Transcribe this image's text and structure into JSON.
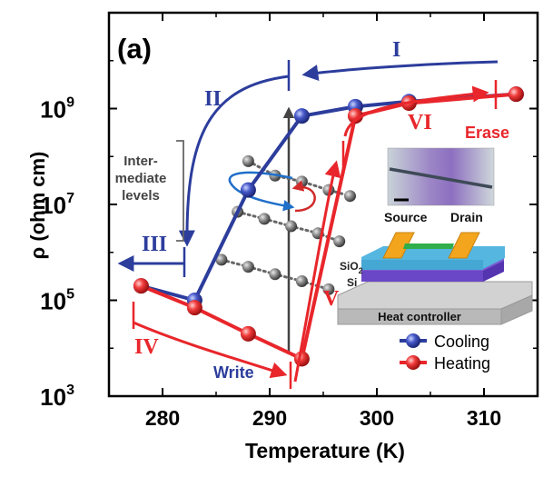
{
  "chart_data": {
    "type": "line",
    "panel_label": "(a)",
    "xlabel": "Temperature (K)",
    "ylabel": "ρ (ohm cm)",
    "y_scale": "log",
    "xlim": [
      275,
      315
    ],
    "ylim": [
      1000,
      100000000000
    ],
    "x_ticks": [
      {
        "value": 280,
        "label": "280"
      },
      {
        "value": 290,
        "label": "290"
      },
      {
        "value": 300,
        "label": "300"
      },
      {
        "value": 310,
        "label": "310"
      }
    ],
    "y_ticks": [
      {
        "value": 1000,
        "base": "10",
        "exp": "3"
      },
      {
        "value": 100000,
        "base": "10",
        "exp": "5"
      },
      {
        "value": 10000000,
        "base": "10",
        "exp": "7"
      },
      {
        "value": 1000000000,
        "base": "10",
        "exp": "9"
      }
    ],
    "legend_position": "bottom-right",
    "series": [
      {
        "name": "Cooling",
        "color": "#2c3d9c",
        "points": [
          [
            313,
            2000000000
          ],
          [
            303,
            1400000000
          ],
          [
            298,
            1100000000
          ],
          [
            293,
            700000000
          ],
          [
            288,
            20000000
          ],
          [
            283,
            100000
          ],
          [
            278,
            200000
          ]
        ]
      },
      {
        "name": "Heating",
        "color": "#e8262b",
        "points": [
          [
            278,
            200000
          ],
          [
            283,
            70000
          ],
          [
            288,
            20000
          ],
          [
            293,
            6000
          ],
          [
            298,
            700000000
          ],
          [
            303,
            1300000000
          ],
          [
            313,
            2000000000
          ]
        ]
      }
    ],
    "intermediate_levels": {
      "color": "#555555",
      "lines": [
        [
          [
            288,
            80000000
          ],
          [
            290.5,
            40000000
          ],
          [
            293,
            30000000
          ],
          [
            295.5,
            20000000
          ],
          [
            297.5,
            15000000
          ]
        ],
        [
          [
            287,
            7000000
          ],
          [
            289.5,
            5000000
          ],
          [
            292,
            3500000
          ],
          [
            294.5,
            2500000
          ],
          [
            296.5,
            1700000
          ]
        ],
        [
          [
            285.5,
            700000
          ],
          [
            288,
            500000
          ],
          [
            290.5,
            350000
          ],
          [
            293,
            250000
          ],
          [
            295.5,
            170000
          ]
        ]
      ]
    },
    "annotations": {
      "roman": [
        "I",
        "II",
        "III",
        "IV",
        "V",
        "VI"
      ],
      "write": "Write",
      "erase": "Erase",
      "intermediate_line1": "Inter-",
      "intermediate_line2": "mediate",
      "intermediate_line3": "levels"
    },
    "inset": {
      "source": "Source",
      "drain": "Drain",
      "sio2_base": "SiO",
      "sio2_sub": "2",
      "si": "Si",
      "heat_controller": "Heat controller"
    }
  }
}
